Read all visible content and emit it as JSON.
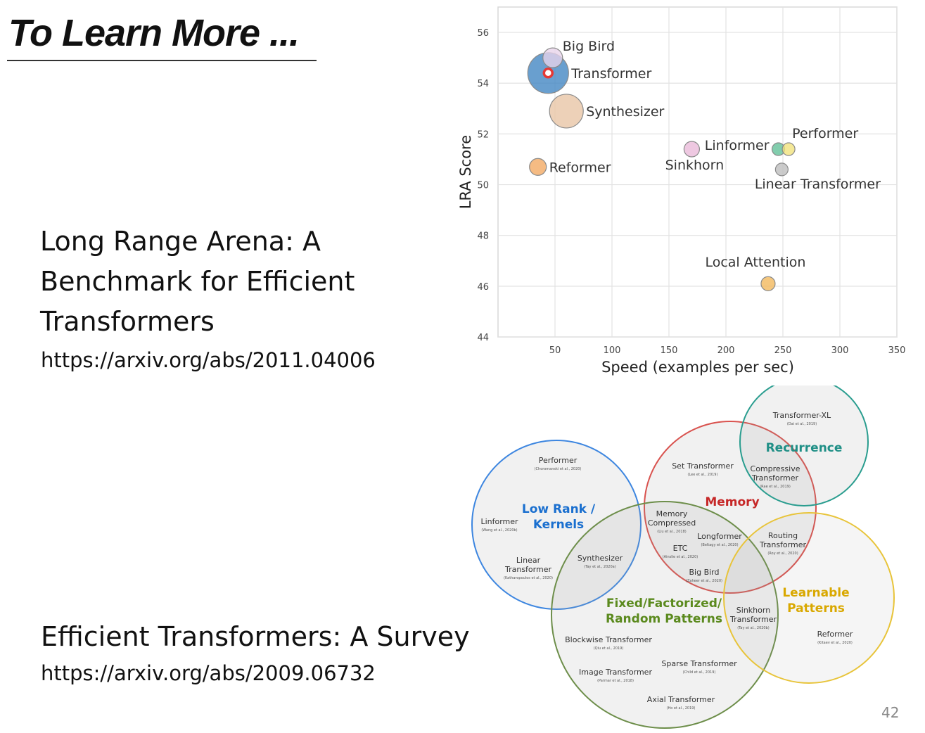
{
  "slide": {
    "title": "To Learn More ...",
    "page_number": "42"
  },
  "references": [
    {
      "title": "Long Range Arena: A Benchmark for Efficient Transformers",
      "url": "https://arxiv.org/abs/2011.04006"
    },
    {
      "title": "Efficient Transformers: A Survey",
      "url": "https://arxiv.org/abs/2009.06732"
    }
  ],
  "chart_data": {
    "type": "scatter",
    "title": "",
    "xlabel": "Speed (examples per sec)",
    "ylabel": "LRA Score",
    "xlim": [
      0,
      350
    ],
    "ylim": [
      44,
      57
    ],
    "xticks": [
      50,
      100,
      150,
      200,
      250,
      300,
      350
    ],
    "yticks": [
      44,
      46,
      48,
      50,
      52,
      54,
      56
    ],
    "grid": true,
    "points": [
      {
        "name": "Big Bird",
        "x": 48,
        "y": 55.0,
        "size": 14,
        "color": "#e8d3ea",
        "label_side": "right"
      },
      {
        "name": "Transformer",
        "x": 44,
        "y": 54.4,
        "size": 29,
        "color": "#3f84c2",
        "label_side": "right",
        "highlight": true
      },
      {
        "name": "Synthesizer",
        "x": 60,
        "y": 52.9,
        "size": 24,
        "color": "#e8c4a4",
        "label_side": "right"
      },
      {
        "name": "Reformer",
        "x": 35,
        "y": 50.7,
        "size": 12,
        "color": "#f2a860",
        "label_side": "right"
      },
      {
        "name": "Sinkhorn",
        "x": 170,
        "y": 51.4,
        "size": 11,
        "color": "#e9b8d8",
        "label_side": "below"
      },
      {
        "name": "Linformer",
        "x": 246,
        "y": 51.4,
        "size": 9,
        "color": "#5fbf96",
        "label_side": "left"
      },
      {
        "name": "Performer",
        "x": 255,
        "y": 51.4,
        "size": 9,
        "color": "#f1e27a",
        "label_side": "above-right"
      },
      {
        "name": "Linear Transformer",
        "x": 249,
        "y": 50.6,
        "size": 9,
        "color": "#bdbdbd",
        "label_side": "below"
      },
      {
        "name": "Local Attention",
        "x": 237,
        "y": 46.1,
        "size": 10,
        "color": "#f2b75a",
        "label_side": "above"
      }
    ]
  },
  "venn": {
    "groups": [
      {
        "name": "Low Rank / Kernels",
        "lines": [
          "Low Rank /",
          "Kernels"
        ],
        "color": "#1a6fcf"
      },
      {
        "name": "Memory",
        "lines": [
          "Memory"
        ],
        "color": "#c62828"
      },
      {
        "name": "Recurrence",
        "lines": [
          "Recurrence"
        ],
        "color": "#1f8f86"
      },
      {
        "name": "Fixed/Factorized/ Random Patterns",
        "lines": [
          "Fixed/Factorized/",
          "Random Patterns"
        ],
        "color": "#5b8a1e"
      },
      {
        "name": "Learnable Patterns",
        "lines": [
          "Learnable",
          "Patterns"
        ],
        "color": "#d9a800"
      }
    ],
    "models": [
      {
        "lines": [
          "Transformer-XL"
        ],
        "cite": "(Dai et al., 2019)"
      },
      {
        "lines": [
          "Performer"
        ],
        "cite": "(Choromanski et al., 2020)"
      },
      {
        "lines": [
          "Set Transformer"
        ],
        "cite": "(Lee et al., 2019)"
      },
      {
        "lines": [
          "Compressive",
          "Transformer"
        ],
        "cite": "(Rae et al., 2019)"
      },
      {
        "lines": [
          "Linformer"
        ],
        "cite": "(Wang et al., 2020b)"
      },
      {
        "lines": [
          "Memory",
          "Compressed"
        ],
        "cite": "(Liu et al., 2018)"
      },
      {
        "lines": [
          "Longformer"
        ],
        "cite": "(Beltagy et al., 2020)"
      },
      {
        "lines": [
          "ETC"
        ],
        "cite": "(Ainslie et al., 2020)"
      },
      {
        "lines": [
          "Routing",
          "Transformer"
        ],
        "cite": "(Roy et al., 2020)"
      },
      {
        "lines": [
          "Linear",
          "Transformer"
        ],
        "cite": "(Katharopoulos et al., 2020)"
      },
      {
        "lines": [
          "Synthesizer"
        ],
        "cite": "(Tay et al., 2020a)"
      },
      {
        "lines": [
          "Big Bird"
        ],
        "cite": "(Zaheer et al., 2020)"
      },
      {
        "lines": [
          "Sinkhorn",
          "Transformer"
        ],
        "cite": "(Tay et al., 2020b)"
      },
      {
        "lines": [
          "Blockwise Transformer"
        ],
        "cite": "(Qiu et al., 2019)"
      },
      {
        "lines": [
          "Reformer"
        ],
        "cite": "(Kitaev et al., 2020)"
      },
      {
        "lines": [
          "Sparse Transformer"
        ],
        "cite": "(Child et al., 2019)"
      },
      {
        "lines": [
          "Image Transformer"
        ],
        "cite": "(Parmar et al., 2018)"
      },
      {
        "lines": [
          "Axial Transformer"
        ],
        "cite": "(Ho et al., 2019)"
      }
    ]
  }
}
